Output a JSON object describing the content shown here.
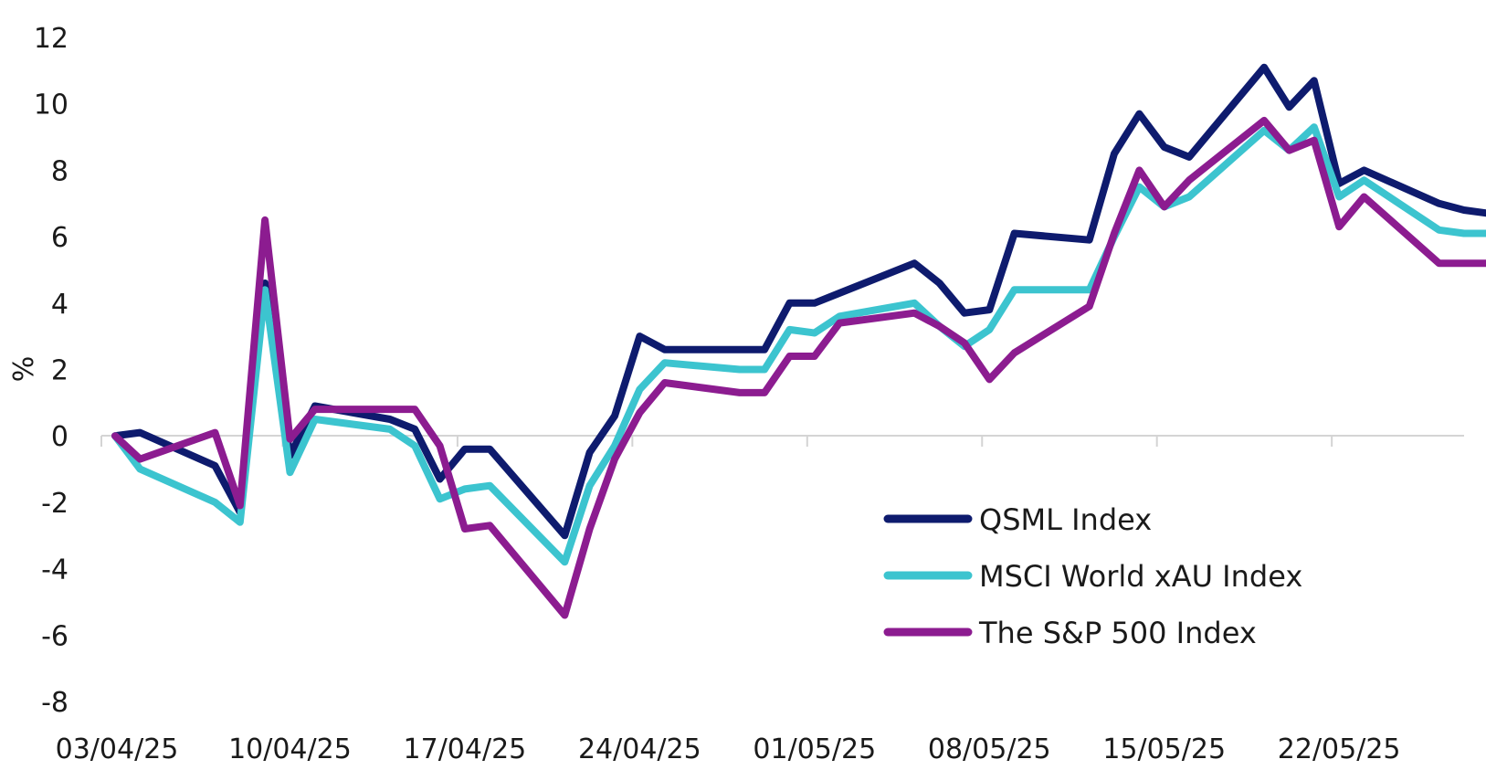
{
  "chart_data": {
    "type": "line",
    "title": "",
    "xlabel": "",
    "ylabel": "%",
    "ylim": [
      -8,
      12
    ],
    "yticks": [
      "12",
      "10",
      "8",
      "6",
      "4",
      "2",
      "0",
      "-2",
      "-4",
      "-6",
      "-8"
    ],
    "ytick_values": [
      12,
      10,
      8,
      6,
      4,
      2,
      0,
      -2,
      -4,
      -6,
      -8
    ],
    "xtick_labels": [
      "03/04/25",
      "10/04/25",
      "17/04/25",
      "24/04/25",
      "01/05/25",
      "08/05/25",
      "15/05/25",
      "22/05/25"
    ],
    "xtick_dates": [
      "2025-04-03",
      "2025-04-10",
      "2025-04-17",
      "2025-04-24",
      "2025-05-01",
      "2025-05-08",
      "2025-05-15",
      "2025-05-22"
    ],
    "grid": false,
    "legend_position": "bottom-right",
    "x": [
      "2025-04-03",
      "2025-04-04",
      "2025-04-07",
      "2025-04-08",
      "2025-04-09",
      "2025-04-10",
      "2025-04-11",
      "2025-04-14",
      "2025-04-15",
      "2025-04-16",
      "2025-04-17",
      "2025-04-18",
      "2025-04-21",
      "2025-04-22",
      "2025-04-23",
      "2025-04-24",
      "2025-04-25",
      "2025-04-28",
      "2025-04-29",
      "2025-04-30",
      "2025-05-01",
      "2025-05-02",
      "2025-05-05",
      "2025-05-06",
      "2025-05-07",
      "2025-05-08",
      "2025-05-09",
      "2025-05-12",
      "2025-05-13",
      "2025-05-14",
      "2025-05-15",
      "2025-05-16",
      "2025-05-19",
      "2025-05-20",
      "2025-05-21",
      "2025-05-22",
      "2025-05-23",
      "2025-05-26",
      "2025-05-27",
      "2025-05-28",
      "2025-05-29"
    ],
    "series": [
      {
        "name": "QSML Index",
        "color": "#0e1b6e",
        "values": [
          0.0,
          0.1,
          -0.9,
          -2.3,
          4.6,
          -0.6,
          0.9,
          0.5,
          0.2,
          -1.3,
          -0.4,
          -0.4,
          -3.0,
          -0.5,
          0.6,
          3.0,
          2.6,
          2.6,
          2.6,
          4.0,
          4.0,
          4.3,
          5.2,
          4.6,
          3.7,
          3.8,
          6.1,
          5.9,
          8.5,
          9.7,
          8.7,
          8.4,
          11.1,
          9.9,
          10.7,
          7.6,
          8.0,
          7.0,
          6.8,
          6.7,
          6.7
        ]
      },
      {
        "name": "MSCI World xAU Index",
        "color": "#3cc4cf",
        "values": [
          0.0,
          -1.0,
          -2.0,
          -2.6,
          4.4,
          -1.1,
          0.5,
          0.2,
          -0.3,
          -1.9,
          -1.6,
          -1.5,
          -3.8,
          -1.5,
          -0.3,
          1.4,
          2.2,
          2.0,
          2.0,
          3.2,
          3.1,
          3.6,
          4.0,
          3.3,
          2.7,
          3.2,
          4.4,
          4.4,
          6.0,
          7.5,
          6.9,
          7.2,
          9.2,
          8.6,
          9.3,
          7.2,
          7.7,
          6.2,
          6.1,
          6.1,
          6.1
        ]
      },
      {
        "name": "The S&P 500 Index",
        "color": "#8c1c90",
        "values": [
          0.0,
          -0.7,
          0.1,
          -2.1,
          6.5,
          -0.1,
          0.8,
          0.8,
          0.8,
          -0.3,
          -2.8,
          -2.7,
          -5.4,
          -2.8,
          -0.7,
          0.7,
          1.6,
          1.3,
          1.3,
          2.4,
          2.4,
          3.4,
          3.7,
          3.3,
          2.8,
          1.7,
          2.5,
          3.9,
          6.1,
          8.0,
          6.9,
          7.7,
          9.5,
          8.6,
          8.9,
          6.3,
          7.2,
          5.2,
          5.2,
          5.2,
          5.3
        ]
      }
    ]
  }
}
